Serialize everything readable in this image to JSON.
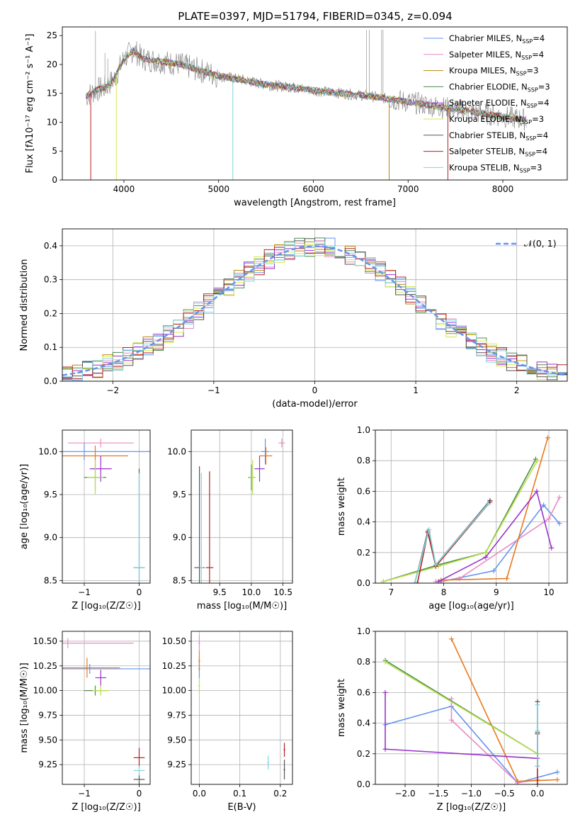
{
  "title": "PLATE=0397, MJD=51794, FIBERID=0345, z=0.094",
  "colors": {
    "chabrier_miles": "#6495ed",
    "salpeter_miles": "#e88ac4",
    "kroupa_miles": "#b8860b",
    "chabrier_elodie": "#4c8c4c",
    "salpeter_elodie": "#9932cc",
    "kroupa_elodie": "#d4e84a",
    "chabrier_stelib": "#555555",
    "salpeter_stelib": "#b22222",
    "kroupa_stelib": "#7fd4e0",
    "orange": "#e8781e",
    "lime": "#b8e04a",
    "data": "#808080"
  },
  "legend": [
    {
      "label": "Chabrier MILES, N",
      "sub": "SSP",
      "tail": "=4",
      "color": "#6495ed"
    },
    {
      "label": "Salpeter MILES, N",
      "sub": "SSP",
      "tail": "=4",
      "color": "#e88ac4"
    },
    {
      "label": "Kroupa MILES, N",
      "sub": "SSP",
      "tail": "=3",
      "color": "#b8860b"
    },
    {
      "label": "Chabrier ELODIE, N",
      "sub": "SSP",
      "tail": "=3",
      "color": "#4c8c4c"
    },
    {
      "label": "Salpeter ELODIE, N",
      "sub": "SSP",
      "tail": "=4",
      "color": "#9932cc"
    },
    {
      "label": "Kroupa ELODIE, N",
      "sub": "SSP",
      "tail": "=3",
      "color": "#d4e84a"
    },
    {
      "label": "Chabrier STELIB, N",
      "sub": "SSP",
      "tail": "=4",
      "color": "#555555"
    },
    {
      "label": "Salpeter STELIB, N",
      "sub": "SSP",
      "tail": "=4",
      "color": "#b22222"
    },
    {
      "label": "Kroupa STELIB, N",
      "sub": "SSP",
      "tail": "=3",
      "color": "#7fd4e0"
    }
  ],
  "chart_data": [
    {
      "id": "spectrum",
      "type": "line",
      "xlabel": "wavelength [Angstrom, rest frame]",
      "ylabel": "Flux [fλ10⁻¹⁷ erg cm⁻² s⁻¹ A⁻¹]",
      "xlim": [
        3350,
        8680
      ],
      "ylim": [
        0,
        26.5
      ],
      "xticks": [
        4000,
        5000,
        6000,
        7000,
        8000
      ],
      "yticks": [
        0,
        5,
        10,
        15,
        20,
        25
      ],
      "continuum": {
        "x": [
          3600,
          3700,
          3800,
          3900,
          4000,
          4100,
          4200,
          4400,
          4600,
          4800,
          5000,
          5200,
          5500,
          5800,
          6000,
          6300,
          6600,
          6800,
          7000,
          7200,
          7400,
          7600,
          7800,
          8000,
          8200
        ],
        "y": [
          14.5,
          15.5,
          16,
          17.5,
          21,
          22.5,
          21,
          20.5,
          20,
          19,
          18,
          17.5,
          16.5,
          16,
          15.5,
          15,
          14.5,
          14,
          13.5,
          13,
          12.5,
          12,
          11.5,
          11,
          10.5
        ]
      }
    },
    {
      "id": "residuals",
      "type": "line",
      "xlabel": "(data-model)/error",
      "ylabel": "Normed distribution",
      "xlim": [
        -2.5,
        2.5
      ],
      "ylim": [
        0,
        0.45
      ],
      "xticks": [
        -2,
        -1,
        0,
        1,
        2
      ],
      "yticks": [
        0.0,
        0.1,
        0.2,
        0.3,
        0.4
      ],
      "gaussian_label": "𝒩(0, 1)",
      "gaussian": {
        "mu": 0,
        "sigma": 1
      }
    },
    {
      "id": "age_vs_z",
      "type": "scatter",
      "xlabel": "Z [log₁₀(Z/Z☉)]",
      "ylabel": "age  [log₁₀(age/yr)]",
      "xlim": [
        -1.4,
        0.2
      ],
      "ylim": [
        8.47,
        10.25
      ],
      "xticks": [
        -1,
        0
      ],
      "yticks": [
        8.5,
        9.0,
        9.5,
        10.0
      ],
      "points": [
        {
          "x": -1.0,
          "y": 10.0,
          "xerr": 1.3,
          "yerr": 0.1,
          "color": "#6495ed"
        },
        {
          "x": -0.7,
          "y": 10.1,
          "xerr": 0.6,
          "yerr": 0.05,
          "color": "#e88ac4"
        },
        {
          "x": -0.8,
          "y": 9.95,
          "xerr": 0.6,
          "yerr": 0.12,
          "color": "#e8781e"
        },
        {
          "x": -0.8,
          "y": 9.7,
          "xerr": 0.2,
          "yerr": 0.15,
          "color": "#4c8c4c"
        },
        {
          "x": -0.7,
          "y": 9.8,
          "xerr": 0.2,
          "yerr": 0.15,
          "color": "#9932cc"
        },
        {
          "x": -0.8,
          "y": 9.7,
          "xerr": 0.15,
          "yerr": 0.2,
          "color": "#b8e04a"
        },
        {
          "x": 0.0,
          "y": 8.65,
          "xerr": 0.1,
          "yerr": 1.15,
          "color": "#555555"
        },
        {
          "x": 0.0,
          "y": 8.65,
          "xerr": 0.1,
          "yerr": 1.1,
          "color": "#7fd4e0"
        }
      ]
    },
    {
      "id": "age_vs_mass",
      "type": "scatter",
      "xlabel": "mass [log₁₀(M/M☉)]",
      "ylabel": "",
      "xlim": [
        9.05,
        10.65
      ],
      "ylim": [
        8.47,
        10.25
      ],
      "xticks": [
        9.5,
        10.0,
        10.5
      ],
      "yticks": [
        8.5,
        9.0,
        9.5,
        10.0
      ],
      "points": [
        {
          "x": 10.22,
          "y": 10.0,
          "xerr": 0.06,
          "yerr": 0.15,
          "color": "#6495ed"
        },
        {
          "x": 10.48,
          "y": 10.1,
          "xerr": 0.05,
          "yerr": 0.05,
          "color": "#e88ac4"
        },
        {
          "x": 10.23,
          "y": 9.95,
          "xerr": 0.1,
          "yerr": 0.1,
          "color": "#e8781e"
        },
        {
          "x": 10.0,
          "y": 9.7,
          "xerr": 0.05,
          "yerr": 0.15,
          "color": "#4c8c4c"
        },
        {
          "x": 10.13,
          "y": 9.8,
          "xerr": 0.08,
          "yerr": 0.15,
          "color": "#9932cc"
        },
        {
          "x": 10.02,
          "y": 9.7,
          "xerr": 0.05,
          "yerr": 0.2,
          "color": "#b8e04a"
        },
        {
          "x": 9.18,
          "y": 8.65,
          "xerr": 0.08,
          "yerr": 1.18,
          "color": "#555555"
        },
        {
          "x": 9.34,
          "y": 8.65,
          "xerr": 0.06,
          "yerr": 1.12,
          "color": "#b22222"
        },
        {
          "x": 9.21,
          "y": 8.65,
          "xerr": 0.03,
          "yerr": 1.1,
          "color": "#7fd4e0"
        }
      ]
    },
    {
      "id": "weight_vs_age",
      "type": "line",
      "xlabel": "age  [log₁₀(age/yr)]",
      "ylabel": "mass weight",
      "xlim": [
        6.7,
        10.35
      ],
      "ylim": [
        0,
        1.0
      ],
      "xticks": [
        7,
        8,
        9,
        10
      ],
      "yticks": [
        0.0,
        0.2,
        0.4,
        0.6,
        0.8,
        1.0
      ],
      "series": [
        {
          "color": "#6495ed",
          "x": [
            7.95,
            8.95,
            9.9,
            10.2
          ],
          "y": [
            0.01,
            0.08,
            0.51,
            0.39
          ]
        },
        {
          "color": "#e88ac4",
          "x": [
            7.85,
            8.3,
            10.0,
            10.2
          ],
          "y": [
            0.01,
            0.03,
            0.42,
            0.56
          ]
        },
        {
          "color": "#e8781e",
          "x": [
            7.95,
            9.2,
            9.98
          ],
          "y": [
            0.02,
            0.03,
            0.95
          ]
        },
        {
          "color": "#4c8c4c",
          "x": [
            6.85,
            7.9,
            8.8,
            9.75
          ],
          "y": [
            0.01,
            0.12,
            0.2,
            0.81
          ]
        },
        {
          "color": "#9932cc",
          "x": [
            7.9,
            8.8,
            9.77,
            10.05
          ],
          "y": [
            0.01,
            0.17,
            0.6,
            0.23
          ]
        },
        {
          "color": "#b8e04a",
          "x": [
            6.85,
            7.9,
            8.8,
            9.78
          ],
          "y": [
            0.01,
            0.11,
            0.2,
            0.8
          ]
        },
        {
          "color": "#555555",
          "x": [
            7.45,
            7.7,
            7.85,
            8.88
          ],
          "y": [
            0.0,
            0.34,
            0.12,
            0.54
          ]
        },
        {
          "color": "#b22222",
          "x": [
            7.5,
            7.7,
            7.85,
            8.88
          ],
          "y": [
            0.0,
            0.33,
            0.11,
            0.53
          ]
        },
        {
          "color": "#7fd4e0",
          "x": [
            7.45,
            7.72,
            7.85,
            8.85
          ],
          "y": [
            0.0,
            0.35,
            0.12,
            0.52
          ]
        }
      ]
    },
    {
      "id": "mass_vs_z",
      "type": "scatter",
      "xlabel": "Z [log₁₀(Z/Z☉)]",
      "ylabel": "mass [log₁₀(M/M☉)]",
      "xlim": [
        -1.4,
        0.2
      ],
      "ylim": [
        9.05,
        10.6
      ],
      "xticks": [
        -1,
        0
      ],
      "yticks": [
        9.25,
        9.5,
        9.75,
        10.0,
        10.25,
        10.5
      ],
      "points": [
        {
          "x": -0.9,
          "y": 10.22,
          "xerr": 1.2,
          "yerr": 0.05,
          "color": "#6495ed"
        },
        {
          "x": -1.3,
          "y": 10.48,
          "xerr": 1.2,
          "yerr": 0.05,
          "color": "#e88ac4"
        },
        {
          "x": -0.95,
          "y": 10.23,
          "xerr": 0.6,
          "yerr": 0.1,
          "color": "#e8781e"
        },
        {
          "x": -0.8,
          "y": 10.0,
          "xerr": 0.2,
          "yerr": 0.05,
          "color": "#4c8c4c"
        },
        {
          "x": -0.7,
          "y": 10.13,
          "xerr": 0.1,
          "yerr": 0.08,
          "color": "#9932cc"
        },
        {
          "x": -0.7,
          "y": 10.0,
          "xerr": 0.15,
          "yerr": 0.05,
          "color": "#b8e04a"
        },
        {
          "x": 0.0,
          "y": 9.1,
          "xerr": 0.1,
          "yerr": 0.05,
          "color": "#555555"
        },
        {
          "x": 0.0,
          "y": 9.32,
          "xerr": 0.1,
          "yerr": 0.1,
          "color": "#b22222"
        },
        {
          "x": 0.0,
          "y": 9.19,
          "xerr": 0.1,
          "yerr": 0.05,
          "color": "#7fd4e0"
        }
      ]
    },
    {
      "id": "mass_vs_ebv",
      "type": "scatter",
      "xlabel": "E(B-V)",
      "ylabel": "",
      "xlim": [
        -0.02,
        0.23
      ],
      "ylim": [
        9.05,
        10.6
      ],
      "xticks": [
        0.0,
        0.1,
        0.2
      ],
      "yticks": [
        9.25,
        9.5,
        9.75,
        10.0,
        10.25,
        10.5
      ],
      "points": [
        {
          "x": 0.0,
          "y": 10.22,
          "xerr": 0.002,
          "yerr": 0.1,
          "color": "#6495ed"
        },
        {
          "x": 0.0,
          "y": 10.48,
          "xerr": 0.002,
          "yerr": 0.08,
          "color": "#e88ac4"
        },
        {
          "x": 0.0,
          "y": 10.3,
          "xerr": 0.002,
          "yerr": 0.1,
          "color": "#e8781e"
        },
        {
          "x": 0.0,
          "y": 10.05,
          "xerr": 0.002,
          "yerr": 0.08,
          "color": "#b8e04a"
        },
        {
          "x": 0.21,
          "y": 9.2,
          "xerr": 0.002,
          "yerr": 0.1,
          "color": "#555555"
        },
        {
          "x": 0.21,
          "y": 9.4,
          "xerr": 0.002,
          "yerr": 0.07,
          "color": "#b22222"
        },
        {
          "x": 0.17,
          "y": 9.27,
          "xerr": 0.002,
          "yerr": 0.07,
          "color": "#7fd4e0"
        }
      ]
    },
    {
      "id": "weight_vs_z",
      "type": "line",
      "xlabel": "Z [log₁₀(Z/Z☉)]",
      "ylabel": "mass weight",
      "xlim": [
        -2.45,
        0.45
      ],
      "ylim": [
        0,
        1.0
      ],
      "xticks": [
        -2.0,
        -1.5,
        -1.0,
        -0.5,
        0.0
      ],
      "yticks": [
        0.0,
        0.2,
        0.4,
        0.6,
        0.8,
        1.0
      ],
      "series": [
        {
          "color": "#6495ed",
          "x": [
            -2.3,
            -1.3,
            -0.3,
            0.3
          ],
          "y": [
            0.39,
            0.51,
            0.01,
            0.08
          ]
        },
        {
          "color": "#e88ac4",
          "x": [
            -1.3,
            -1.3,
            -0.3,
            0.0
          ],
          "y": [
            0.56,
            0.42,
            0.01,
            0.03
          ]
        },
        {
          "color": "#e8781e",
          "x": [
            -1.3,
            -0.3,
            0.3
          ],
          "y": [
            0.95,
            0.02,
            0.03
          ]
        },
        {
          "color": "#4c8c4c",
          "x": [
            -2.3,
            0.0
          ],
          "y": [
            0.81,
            0.2
          ]
        },
        {
          "color": "#9932cc",
          "x": [
            -2.3,
            -2.3,
            0.0
          ],
          "y": [
            0.6,
            0.23,
            0.17
          ]
        },
        {
          "color": "#b8e04a",
          "x": [
            -2.3,
            0.0
          ],
          "y": [
            0.8,
            0.2
          ]
        },
        {
          "color": "#555555",
          "x": [
            0.0,
            0.0,
            0.0
          ],
          "y": [
            0.54,
            0.34,
            0.12
          ]
        },
        {
          "color": "#b22222",
          "x": [
            0.0,
            0.0
          ],
          "y": [
            0.33,
            0.0
          ]
        },
        {
          "color": "#7fd4e0",
          "x": [
            0.0,
            0.0,
            0.0
          ],
          "y": [
            0.52,
            0.35,
            0.12
          ]
        }
      ]
    }
  ]
}
